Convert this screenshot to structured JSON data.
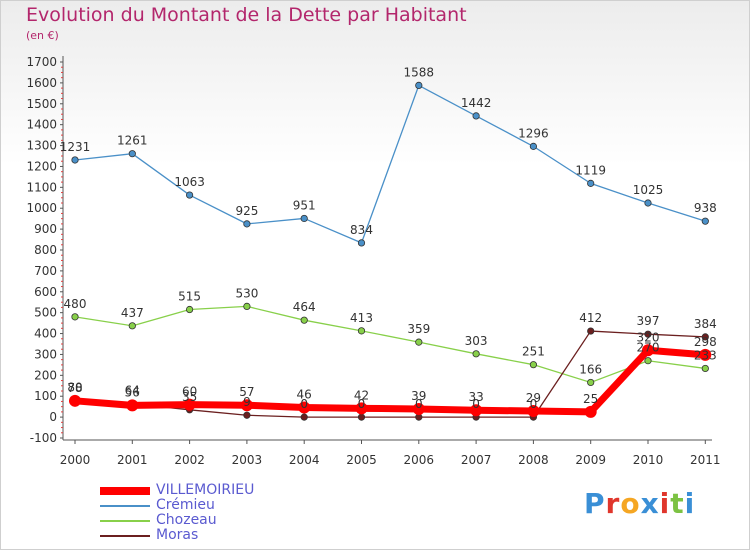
{
  "chart_data": {
    "type": "line",
    "title": "Evolution du Montant de la Dette par Habitant",
    "subtitle": "(en €)",
    "categories": [
      "2000",
      "2001",
      "2002",
      "2003",
      "2004",
      "2005",
      "2006",
      "2007",
      "2008",
      "2009",
      "2010",
      "2011"
    ],
    "ylim": [
      -100,
      1700
    ],
    "yticks": [
      "-100",
      "0",
      "100",
      "200",
      "300",
      "400",
      "500",
      "600",
      "700",
      "800",
      "900",
      "1000",
      "1100",
      "1200",
      "1300",
      "1400",
      "1500",
      "1600",
      "1700"
    ],
    "series": [
      {
        "name": "VILLEMOIRIEU",
        "color": "#ff0000",
        "values": [
          78,
          56,
          60,
          57,
          46,
          42,
          39,
          33,
          29,
          25,
          320,
          298
        ],
        "labels": [
          "78",
          "56",
          "60",
          "57",
          "46",
          "42",
          "39",
          "33",
          "29",
          "25",
          "320",
          "298"
        ]
      },
      {
        "name": "Crémieu",
        "color": "#4a90c8",
        "values": [
          1231,
          1261,
          1063,
          925,
          951,
          834,
          1588,
          1442,
          1296,
          1119,
          1025,
          938
        ],
        "labels": [
          "1231",
          "1261",
          "1063",
          "925",
          "951",
          "834",
          "1588",
          "1442",
          "1296",
          "1119",
          "1025",
          "938"
        ]
      },
      {
        "name": "Chozeau",
        "color": "#88d04a",
        "values": [
          480,
          437,
          515,
          530,
          464,
          413,
          359,
          303,
          251,
          166,
          270,
          233
        ],
        "labels": [
          "480",
          "437",
          "515",
          "530",
          "464",
          "413",
          "359",
          "303",
          "251",
          "166",
          "270",
          "233"
        ]
      },
      {
        "name": "Moras",
        "color": "#6b1f1f",
        "values": [
          80,
          64,
          35,
          9,
          0,
          0,
          0,
          0,
          0,
          412,
          397,
          384
        ],
        "labels": [
          "80",
          "64",
          "35",
          "9",
          "0",
          "0",
          "0",
          "0",
          "0",
          "412",
          "397",
          "384"
        ]
      }
    ],
    "legend_position": "bottom-left",
    "grid": false
  },
  "logo": {
    "text": "Proxiti",
    "letters": [
      "P",
      "r",
      "o",
      "x",
      "i",
      "t",
      "i"
    ],
    "colors": [
      "#3a8fd6",
      "#e0362c",
      "#f5a623",
      "#3a8fd6",
      "#e0362c",
      "#7cc242",
      "#3a8fd6"
    ]
  }
}
